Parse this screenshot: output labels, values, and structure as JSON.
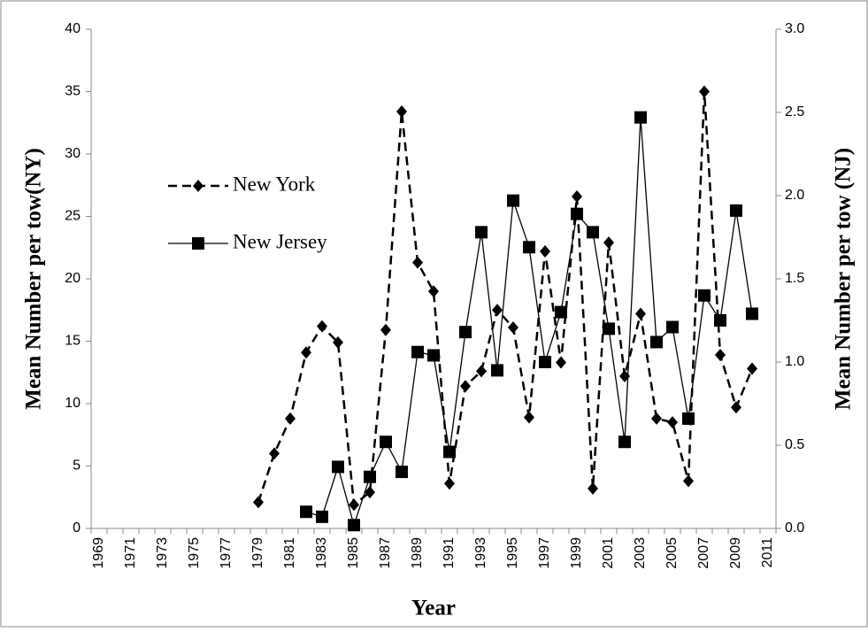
{
  "chart_data": {
    "type": "line",
    "xlabel": "Year",
    "ylabel": "Mean Number per tow(NY)",
    "y2label": "Mean Number per tow (NJ)",
    "categories": [
      "1969",
      null,
      "1971",
      null,
      "1973",
      null,
      "1975",
      null,
      "1977",
      null,
      "1979",
      null,
      "1981",
      null,
      "1983",
      null,
      "1985",
      null,
      "1987",
      null,
      "1989",
      null,
      "1991",
      null,
      "1993",
      null,
      "1995",
      null,
      "1997",
      null,
      "1999",
      null,
      "2001",
      null,
      "2003",
      null,
      "2005",
      null,
      "2007",
      null,
      "2009",
      null,
      "2011"
    ],
    "series": [
      {
        "name": "New York",
        "color": "#000000",
        "marker": "diamond",
        "dash": true,
        "values": [
          null,
          null,
          null,
          null,
          null,
          null,
          null,
          null,
          null,
          null,
          2.1,
          6.0,
          8.8,
          14.1,
          16.2,
          14.9,
          1.9,
          2.9,
          15.9,
          33.4,
          21.3,
          19.0,
          3.6,
          11.4,
          12.6,
          17.5,
          16.1,
          8.9,
          22.2,
          13.3,
          26.6,
          3.2,
          22.9,
          12.2,
          17.2,
          8.8,
          8.5,
          3.8,
          35.0,
          13.9,
          9.7,
          12.8,
          null
        ]
      },
      {
        "name": "New Jersey",
        "color": "#000000",
        "marker": "square",
        "dash": false,
        "axis": "y2",
        "values": [
          null,
          null,
          null,
          null,
          null,
          null,
          null,
          null,
          null,
          null,
          null,
          null,
          null,
          0.1,
          0.07,
          0.37,
          0.02,
          0.31,
          0.52,
          0.34,
          1.06,
          1.04,
          0.46,
          1.18,
          1.78,
          0.95,
          1.97,
          1.69,
          1.0,
          1.3,
          1.89,
          1.78,
          1.2,
          0.52,
          2.47,
          1.12,
          1.21,
          0.66,
          1.4,
          1.25,
          1.91,
          1.29,
          null
        ]
      }
    ],
    "ylim": [
      0,
      40
    ],
    "yticks": [
      0,
      5,
      10,
      15,
      20,
      25,
      30,
      35,
      40
    ],
    "y2lim": [
      0,
      3
    ],
    "y2ticks": [
      {
        "value": 0,
        "label": "0.0"
      },
      {
        "value": 0.5,
        "label": "0.5"
      },
      {
        "value": 1,
        "label": "1.0"
      },
      {
        "value": 1.5,
        "label": "1.5"
      },
      {
        "value": 2,
        "label": "2.0"
      },
      {
        "value": 2.5,
        "label": "2.5"
      },
      {
        "value": 3,
        "label": "3.0"
      }
    ],
    "grid": false,
    "legend": "upper left"
  }
}
